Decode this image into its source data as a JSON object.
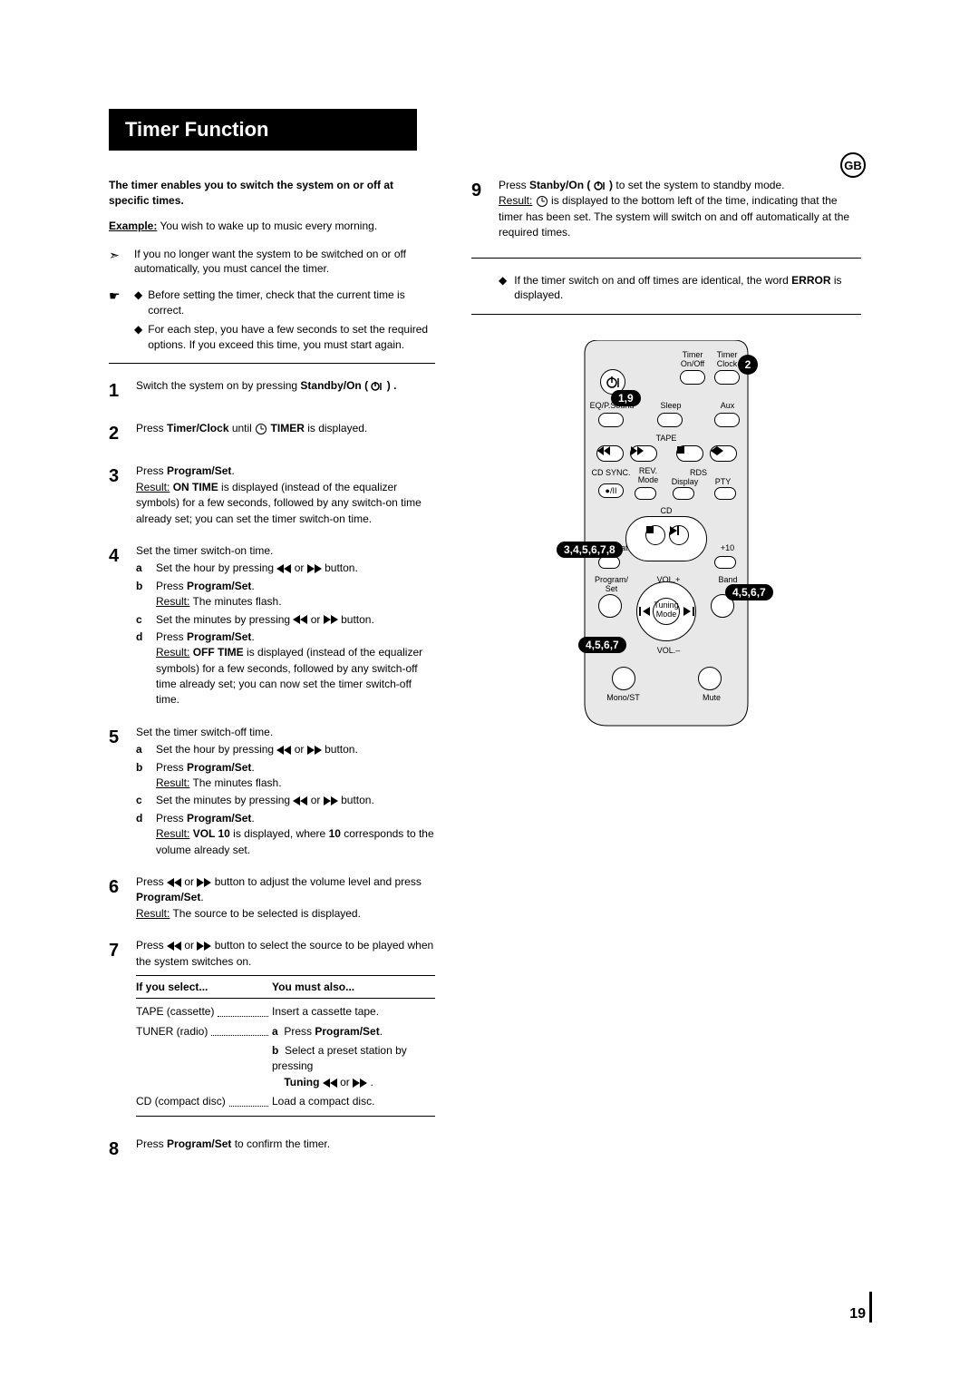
{
  "title": "Timer Function",
  "lang_badge": "GB",
  "page_number": "19",
  "intro": "The timer enables you to switch the system on or off at specific times.",
  "example_label": "Example:",
  "example_text": " You wish to wake up to music every morning.",
  "note1": "If you no longer want the system to be switched on or off automatically, you must cancel the timer.",
  "note2a": "Before setting the timer, check that the current time is correct.",
  "note2b": "For each step, you have a few seconds to set the required options. If you exceed this time, you must start again.",
  "steps": {
    "s1": "Switch the system on by pressing ",
    "s1_bold": "Standby/On ( ",
    "s1_end": " ) .",
    "s2a": "Press ",
    "s2b": "Timer/Clock",
    "s2c": " until ",
    "s2d": " TIMER",
    "s2e": " is displayed.",
    "s3a": "Press ",
    "s3b": "Program/Set",
    "s3c": ".",
    "s3_res_label": "Result:",
    "s3_res1": " ON TIME",
    "s3_res2": " is displayed (instead of the equalizer symbols) for a few seconds, followed by any switch-on time already set; you can set the timer switch-on time.",
    "s4_intro": "Set the timer switch-on time.",
    "s4a1": "Set the hour by pressing ",
    "s4a2": " or ",
    "s4a3": " button.",
    "s4b1": "Press ",
    "s4b2": "Program/Set",
    "s4b3": ".",
    "s4b_res": "Result:",
    "s4b_res2": " The minutes flash.",
    "s4c1": "Set the minutes by pressing ",
    "s4c2": " or ",
    "s4c3": " button.",
    "s4d1": "Press ",
    "s4d2": "Program/Set",
    "s4d3": ".",
    "s4d_res": "Result:",
    "s4d_res1": " OFF TIME",
    "s4d_res2": " is displayed (instead of the equalizer symbols) for a few seconds, followed by any switch-off time already set; you can now set the timer switch-off time.",
    "s5_intro": "Set the timer switch-off time.",
    "s5d_res1": " VOL 10",
    "s5d_res2": " is displayed, where ",
    "s5d_res3": "10",
    "s5d_res4": " corresponds to the volume already set.",
    "s6a": "Press ",
    "s6b": " or ",
    "s6c": " button to adjust the volume level and press ",
    "s6d": "Program/Set",
    "s6e": ".",
    "s6_res": "Result:",
    "s6_res2": " The source to be selected is displayed.",
    "s7a": "Press ",
    "s7b": " or ",
    "s7c": " button to select the source to be played when the system switches on.",
    "s8a": "Press ",
    "s8b": "Program/Set",
    "s8c": " to confirm the timer.",
    "s9a": "Press ",
    "s9b": "Stanby/On ( ",
    "s9c": " )",
    "s9d": " to set the system to standby mode.",
    "s9_res": "Result:",
    "s9_res2": " is displayed to the bottom left of the time, indicating that the timer has been set. The system will switch on and off automatically at the required times.",
    "s9_note": "If the timer switch on and off times are identical, the word ",
    "s9_note2": "ERROR",
    "s9_note3": " is displayed."
  },
  "table": {
    "h1": "If you select...",
    "h2": "You must also...",
    "r1a": "TAPE (cassette)",
    "r1b": "Insert a cassette tape.",
    "r2a": "TUNER (radio)",
    "r2b1": "Press ",
    "r2b2": "Program/Set",
    "r2b3": ".",
    "r2c1": "Select a preset station by pressing",
    "r2c2": "Tuning ",
    "r2c3": " or ",
    "r2c4": " .",
    "r3a": "CD (compact disc)",
    "r3b": "Load a compact disc."
  },
  "remote": {
    "timer_onoff": "Timer\nOn/Off",
    "timer_clock": "Timer\nClock",
    "eq": "EQ/P.Sound",
    "sleep": "Sleep",
    "aux": "Aux",
    "tape": "TAPE",
    "cdsync": "CD SYNC.",
    "rev_mode": "REV.\nMode",
    "rds": "RDS",
    "display": "Display",
    "pty": "PTY",
    "cd": "CD",
    "repeat": "Repeat",
    "plus10": "+10",
    "program_set": "Program/\nSet",
    "volp": "VOL.+",
    "band": "Band",
    "tuning_mode": "Tuning\nMode",
    "volm": "VOL.–",
    "mono": "Mono/ST",
    "mute": "Mute"
  },
  "callouts": {
    "c1": "1,9",
    "c2": "2",
    "c3": "3,4,5,6,7,8",
    "c4": "4,5,6,7",
    "c5": "4,5,6,7"
  }
}
